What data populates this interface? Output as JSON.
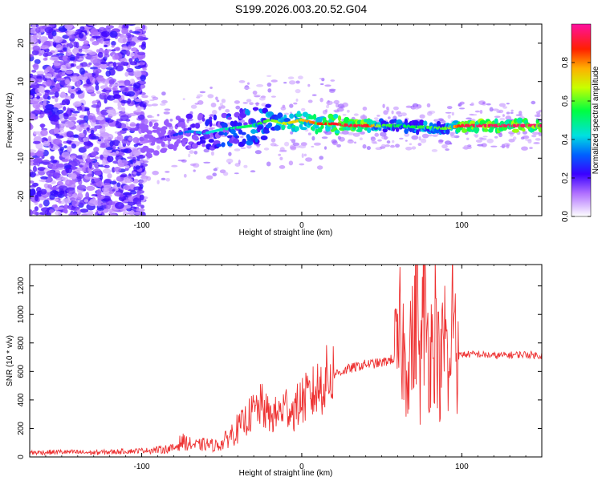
{
  "title": "S199.2026.003.20.52.G04",
  "chart_data": [
    {
      "type": "heatmap",
      "name": "spectrogram",
      "xlabel": "Height of straight line (km)",
      "ylabel": "Frequency (Hz)",
      "xlim": [
        -170,
        150
      ],
      "ylim": [
        -25,
        25
      ],
      "xticks": [
        -100,
        0,
        100
      ],
      "yticks": [
        -20,
        -10,
        0,
        10,
        20
      ],
      "xtick_labels": [
        "-100",
        "0",
        "100"
      ],
      "ytick_labels": [
        "-20",
        "-10",
        "0",
        "10",
        "20"
      ],
      "colorbar": {
        "label": "Normalized spectral amplitude",
        "range": [
          0,
          1
        ],
        "ticks": [
          0.0,
          0.2,
          0.4,
          0.6,
          0.8
        ],
        "tick_labels": [
          "0.0",
          "0.2",
          "0.4",
          "0.6",
          "0.8"
        ]
      },
      "ridge": {
        "description": "dominant frequency line vs height",
        "x": [
          -100,
          -90,
          -80,
          -70,
          -60,
          -50,
          -40,
          -30,
          -20,
          -10,
          0,
          10,
          20,
          30,
          40,
          50,
          60,
          70,
          80,
          90,
          100,
          110,
          120,
          130,
          140,
          150
        ],
        "freq": [
          -6,
          -5,
          -4,
          -3,
          -3.5,
          -2.5,
          -2,
          -1.5,
          0,
          -1,
          0,
          -1,
          -1,
          -1.5,
          -1.5,
          -1.5,
          -1.5,
          -1.8,
          -2,
          -2.2,
          -1.5,
          -1.5,
          -1.5,
          -1.5,
          -1.5,
          -1.5
        ],
        "amplitude": [
          0.1,
          0.15,
          0.25,
          0.35,
          0.4,
          0.45,
          0.5,
          0.55,
          0.6,
          0.7,
          0.75,
          0.85,
          0.9,
          0.92,
          0.92,
          0.6,
          0.55,
          0.55,
          0.6,
          0.6,
          0.92,
          0.94,
          0.95,
          0.95,
          0.95,
          0.95
        ]
      }
    },
    {
      "type": "line",
      "name": "snr",
      "xlabel": "Height of straight line (km)",
      "ylabel": "SNR (10 * v/v)",
      "xlim": [
        -170,
        150
      ],
      "ylim": [
        0,
        1350
      ],
      "xticks": [
        -100,
        0,
        100
      ],
      "yticks": [
        0,
        200,
        400,
        600,
        800,
        1000,
        1200
      ],
      "xtick_labels": [
        "-100",
        "0",
        "100"
      ],
      "ytick_labels": [
        "0",
        "200",
        "400",
        "600",
        "800",
        "1000",
        "1200"
      ],
      "color": "#ee3333",
      "series": [
        {
          "name": "SNR",
          "x": [
            -170,
            -150,
            -130,
            -110,
            -100,
            -90,
            -80,
            -75,
            -70,
            -65,
            -60,
            -55,
            -50,
            -45,
            -40,
            -35,
            -30,
            -25,
            -20,
            -15,
            -10,
            -5,
            0,
            5,
            10,
            15,
            20,
            25,
            30,
            40,
            50,
            55,
            60,
            62,
            65,
            68,
            70,
            72,
            74,
            76,
            80,
            84,
            86,
            90,
            92,
            95,
            97,
            100,
            110,
            120,
            130,
            140,
            150
          ],
          "values": [
            30,
            35,
            30,
            40,
            45,
            50,
            60,
            110,
            90,
            80,
            90,
            80,
            90,
            150,
            200,
            260,
            320,
            360,
            280,
            300,
            360,
            320,
            400,
            420,
            480,
            540,
            580,
            600,
            620,
            650,
            660,
            680,
            700,
            900,
            600,
            850,
            700,
            1350,
            500,
            1100,
            700,
            1000,
            550,
            900,
            400,
            1250,
            700,
            720,
            720,
            710,
            715,
            720,
            710
          ]
        }
      ]
    }
  ]
}
